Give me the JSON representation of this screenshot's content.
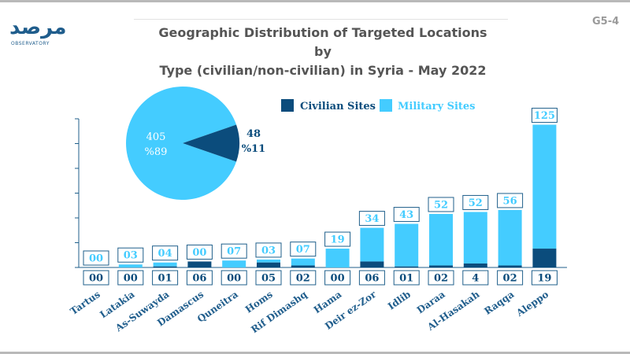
{
  "logo": {
    "arabic": "مرصد",
    "english": "OBSERVATORY"
  },
  "page_code": "G5-4",
  "title_lines": [
    "Geographic Distribution of Targeted Locations by",
    "Type (civilian/non-civilian) in Syria - May 2022"
  ],
  "colors": {
    "civilian": "#0b4c7c",
    "military": "#44ccff",
    "box_border": "#1f5f8b",
    "label": "#1f5d8c",
    "axis": "#1f5f8b"
  },
  "chart_data": [
    {
      "type": "bar",
      "stacked": true,
      "title": "Geographic Distribution of Targeted Locations by Type (civilian/non-civilian) in Syria - May 2022",
      "categories": [
        "Tartus",
        "Latakia",
        "As-Suwayda",
        "Damascus",
        "Quneitra",
        "Homs",
        "Rif Dimashq",
        "Hama",
        "Deir ez-Zor",
        "Idlib",
        "Daraa",
        "Al-Hasakah",
        "Raqqa",
        "Aleppo"
      ],
      "series": [
        {
          "name": "Civilian Sites",
          "values": [
            0,
            0,
            1,
            6,
            0,
            5,
            2,
            0,
            6,
            1,
            2,
            4,
            2,
            19
          ],
          "labels": [
            "00",
            "00",
            "01",
            "06",
            "00",
            "05",
            "02",
            "00",
            "06",
            "01",
            "02",
            "4",
            "02",
            "19"
          ]
        },
        {
          "name": "Military Sites",
          "values": [
            0,
            3,
            4,
            0,
            7,
            3,
            7,
            19,
            34,
            43,
            52,
            52,
            56,
            125
          ],
          "labels": [
            "00",
            "03",
            "04",
            "00",
            "07",
            "03",
            "07",
            "19",
            "34",
            "43",
            "52",
            "52",
            "56",
            "125"
          ]
        }
      ],
      "ylim": [
        0,
        150
      ],
      "legend_position": "top",
      "grid": false
    },
    {
      "type": "pie",
      "slices": [
        {
          "name": "Military Sites",
          "value": 405,
          "percent_label": "%89",
          "value_label": "405"
        },
        {
          "name": "Civilian Sites",
          "value": 48,
          "percent_label": "%11",
          "value_label": "48"
        }
      ]
    }
  ]
}
